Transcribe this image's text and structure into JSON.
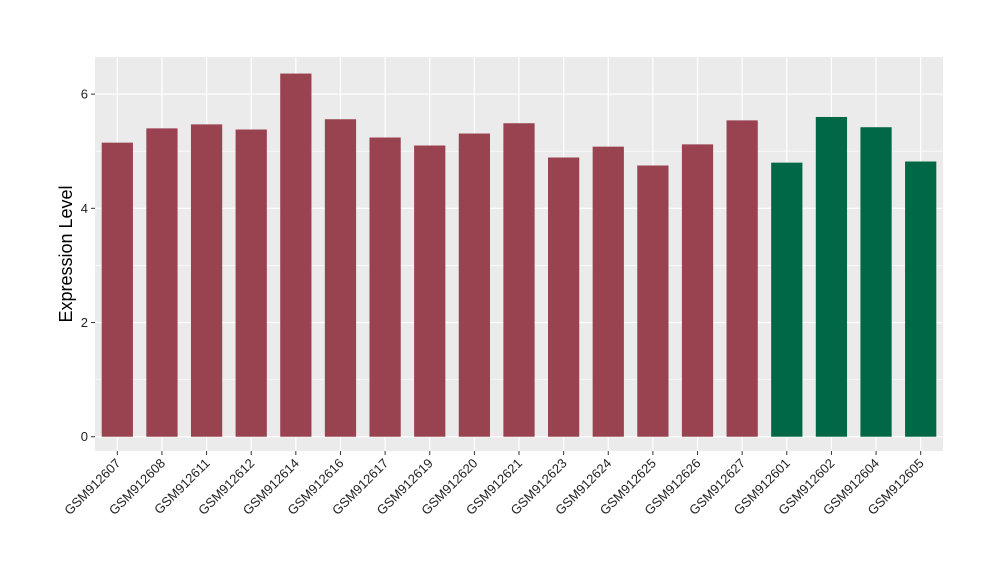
{
  "chart_data": {
    "type": "bar",
    "title": "",
    "xlabel": "",
    "ylabel": "Expression Level",
    "ylim": [
      -0.25,
      6.65
    ],
    "yticks": [
      0,
      2,
      4,
      6
    ],
    "grid": true,
    "legend": "none",
    "panel_background": "#ebebeb",
    "grid_color": "#ffffff",
    "categories": [
      "GSM912607",
      "GSM912608",
      "GSM912611",
      "GSM912612",
      "GSM912614",
      "GSM912616",
      "GSM912617",
      "GSM912619",
      "GSM912620",
      "GSM912621",
      "GSM912623",
      "GSM912624",
      "GSM912625",
      "GSM912626",
      "GSM912627",
      "GSM912601",
      "GSM912602",
      "GSM912604",
      "GSM912605"
    ],
    "values": [
      5.15,
      5.4,
      5.47,
      5.38,
      6.36,
      5.56,
      5.24,
      5.1,
      5.31,
      5.49,
      4.89,
      5.08,
      4.75,
      5.12,
      5.54,
      4.8,
      5.6,
      5.42,
      4.82
    ],
    "bar_colors": [
      "#9a4350",
      "#9a4350",
      "#9a4350",
      "#9a4350",
      "#9a4350",
      "#9a4350",
      "#9a4350",
      "#9a4350",
      "#9a4350",
      "#9a4350",
      "#9a4350",
      "#9a4350",
      "#9a4350",
      "#9a4350",
      "#9a4350",
      "#006846",
      "#006846",
      "#006846",
      "#006846"
    ]
  }
}
